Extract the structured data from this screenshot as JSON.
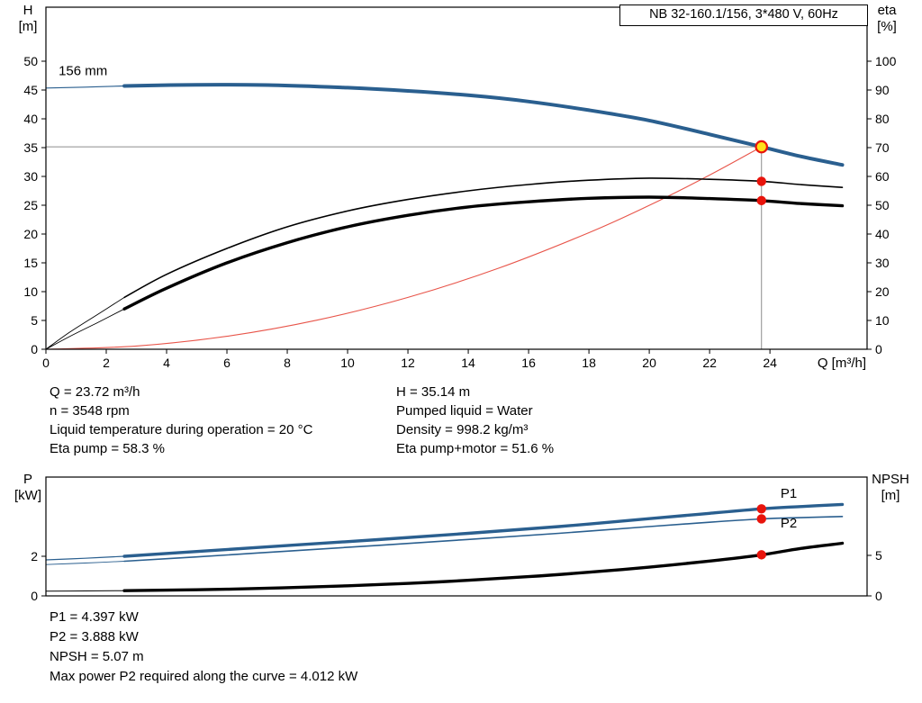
{
  "title_box": {
    "text": "NB 32-160.1/156, 3*480 V, 60Hz"
  },
  "colors": {
    "curve_blue": "#2a5f8f",
    "curve_black": "#000000",
    "system_red": "#e8554a",
    "dot_red": "#e8140c",
    "op_fill": "#ffe11a",
    "crosshair_gray": "#8c8c8c",
    "frame": "#000000"
  },
  "chart_data": [
    {
      "type": "line",
      "name": "hq-eta-chart",
      "title": "NB 32-160.1/156, 3*480 V, 60Hz",
      "x_axis": {
        "label": "Q [m³/h]",
        "min": 0,
        "max": 27.22,
        "ticks": [
          0,
          2,
          4,
          6,
          8,
          10,
          12,
          14,
          16,
          18,
          20,
          22,
          24
        ],
        "show_tick_labels": true
      },
      "y_left": {
        "name": "H",
        "unit": "[m]",
        "min": 0,
        "max": 59.375,
        "ticks": [
          0,
          5,
          10,
          15,
          20,
          25,
          30,
          35,
          40,
          45,
          50
        ]
      },
      "y_right": {
        "name": "eta",
        "unit": "[%]",
        "min": 0,
        "max": 118.75,
        "ticks": [
          0,
          10,
          20,
          30,
          40,
          50,
          60,
          70,
          80,
          90,
          100
        ]
      },
      "series": [
        {
          "name": "system-curve",
          "axis": "left",
          "color": "#e8554a",
          "width": 1.1,
          "points": [
            [
              0,
              0
            ],
            [
              3,
              0.56
            ],
            [
              6,
              2.25
            ],
            [
              9,
              5.06
            ],
            [
              12,
              9.0
            ],
            [
              15,
              14.06
            ],
            [
              18,
              20.24
            ],
            [
              20,
              24.98
            ],
            [
              22,
              30.23
            ],
            [
              23.72,
              35.14
            ]
          ]
        },
        {
          "name": "eta-pump",
          "axis": "right",
          "color": "#000000",
          "width": 1.6,
          "lead_width": 0.9,
          "lead_points": [
            [
              0,
              0
            ],
            [
              0.8,
              6
            ],
            [
              1.7,
              12
            ],
            [
              2.6,
              18
            ]
          ],
          "points": [
            [
              2.6,
              18
            ],
            [
              4,
              26
            ],
            [
              6,
              35
            ],
            [
              8,
              42.5
            ],
            [
              10,
              48
            ],
            [
              12,
              52
            ],
            [
              14,
              55
            ],
            [
              16,
              57.2
            ],
            [
              18,
              58.7
            ],
            [
              20,
              59.4
            ],
            [
              22,
              59.0
            ],
            [
              23.72,
              58.3
            ],
            [
              25,
              57.2
            ],
            [
              26.4,
              56.2
            ]
          ]
        },
        {
          "name": "eta-pump-motor",
          "axis": "right",
          "color": "#000000",
          "width": 3.4,
          "lead_width": 0.9,
          "lead_points": [
            [
              0,
              0
            ],
            [
              0.8,
              4.5
            ],
            [
              1.7,
              9.2
            ],
            [
              2.6,
              14
            ]
          ],
          "points": [
            [
              2.6,
              14
            ],
            [
              4,
              21.2
            ],
            [
              6,
              30
            ],
            [
              8,
              37
            ],
            [
              10,
              42.5
            ],
            [
              12,
              46.5
            ],
            [
              14,
              49.4
            ],
            [
              16,
              51.2
            ],
            [
              18,
              52.4
            ],
            [
              20,
              52.8
            ],
            [
              22,
              52.3
            ],
            [
              23.72,
              51.6
            ],
            [
              25,
              50.6
            ],
            [
              26.4,
              49.8
            ]
          ]
        },
        {
          "name": "head-curve-156mm",
          "axis": "left",
          "color": "#2a5f8f",
          "width": 4,
          "lead_width": 1.2,
          "lead_points": [
            [
              0,
              45.35
            ],
            [
              1.3,
              45.5
            ],
            [
              2.6,
              45.7
            ]
          ],
          "points": [
            [
              2.6,
              45.7
            ],
            [
              5,
              45.9
            ],
            [
              7.5,
              45.85
            ],
            [
              10,
              45.4
            ],
            [
              12,
              44.85
            ],
            [
              14,
              44.1
            ],
            [
              16,
              43.0
            ],
            [
              18,
              41.5
            ],
            [
              20,
              39.7
            ],
            [
              22,
              37.3
            ],
            [
              23.72,
              35.14
            ],
            [
              25,
              33.5
            ],
            [
              26.4,
              32.0
            ]
          ]
        }
      ],
      "crosshair": {
        "x": 23.72,
        "y": 35.14,
        "axis": "left"
      },
      "markers": [
        {
          "type": "dot",
          "x": 23.72,
          "y": 58.3,
          "axis": "right"
        },
        {
          "type": "dot",
          "x": 23.72,
          "y": 51.6,
          "axis": "right"
        },
        {
          "type": "op",
          "x": 23.72,
          "y": 35.14,
          "axis": "left"
        }
      ],
      "annotations": [
        {
          "text": "156 mm",
          "x": 0.42,
          "y": 47.6,
          "axis": "left",
          "color": "#000000"
        }
      ]
    },
    {
      "type": "line",
      "name": "power-npsh-chart",
      "title": "",
      "x_axis": {
        "label": "",
        "min": 0,
        "max": 27.22,
        "ticks": [],
        "show_tick_labels": false
      },
      "y_left": {
        "name": "P",
        "unit": "[kW]",
        "min": 0,
        "max": 6.0,
        "ticks": [
          0,
          2
        ]
      },
      "y_right": {
        "name": "NPSH",
        "unit": "[m]",
        "min": 0,
        "max": 14.67,
        "ticks": [
          0,
          5
        ]
      },
      "series": [
        {
          "name": "npsh-curve",
          "axis": "right",
          "color": "#000000",
          "width": 3.4,
          "lead_width": 1.0,
          "lead_points": [
            [
              0,
              0.58
            ],
            [
              1.3,
              0.61
            ],
            [
              2.6,
              0.65
            ]
          ],
          "points": [
            [
              2.6,
              0.65
            ],
            [
              6,
              0.82
            ],
            [
              10,
              1.25
            ],
            [
              13,
              1.72
            ],
            [
              16,
              2.38
            ],
            [
              18,
              2.92
            ],
            [
              20,
              3.55
            ],
            [
              22,
              4.3
            ],
            [
              23.72,
              5.07
            ],
            [
              25,
              5.85
            ],
            [
              26.4,
              6.5
            ]
          ]
        },
        {
          "name": "p2-power",
          "axis": "left",
          "color": "#2a5f8f",
          "width": 1.6,
          "lead_width": 0.9,
          "lead_points": [
            [
              0,
              1.58
            ],
            [
              1.3,
              1.66
            ],
            [
              2.6,
              1.75
            ]
          ],
          "points": [
            [
              2.6,
              1.75
            ],
            [
              5,
              1.97
            ],
            [
              8,
              2.26
            ],
            [
              11,
              2.55
            ],
            [
              14,
              2.85
            ],
            [
              17,
              3.16
            ],
            [
              20,
              3.5
            ],
            [
              22,
              3.72
            ],
            [
              23.72,
              3.888
            ],
            [
              25,
              3.95
            ],
            [
              26.4,
              4.01
            ]
          ]
        },
        {
          "name": "p1-power",
          "axis": "left",
          "color": "#2a5f8f",
          "width": 3.4,
          "lead_width": 1.2,
          "lead_points": [
            [
              0,
              1.82
            ],
            [
              1.3,
              1.9
            ],
            [
              2.6,
              2.0
            ]
          ],
          "points": [
            [
              2.6,
              2.0
            ],
            [
              5,
              2.24
            ],
            [
              8,
              2.54
            ],
            [
              11,
              2.84
            ],
            [
              14,
              3.16
            ],
            [
              17,
              3.5
            ],
            [
              20,
              3.9
            ],
            [
              22,
              4.17
            ],
            [
              23.72,
              4.397
            ],
            [
              25,
              4.51
            ],
            [
              26.4,
              4.62
            ]
          ]
        }
      ],
      "markers": [
        {
          "type": "dot",
          "x": 23.72,
          "y": 4.397,
          "axis": "left"
        },
        {
          "type": "dot",
          "x": 23.72,
          "y": 3.888,
          "axis": "left"
        },
        {
          "type": "dot",
          "x": 23.72,
          "y": 5.07,
          "axis": "right"
        }
      ],
      "annotations": [
        {
          "text": "P1",
          "x": 24.35,
          "y": 4.95,
          "axis": "left",
          "color": "#2a5f8f"
        },
        {
          "text": "P2",
          "x": 24.35,
          "y": 3.45,
          "axis": "left",
          "color": "#2a5f8f"
        }
      ]
    }
  ],
  "info": {
    "left": [
      "Q = 23.72 m³/h",
      "n = 3548 rpm",
      "Liquid temperature during operation = 20 °C",
      "Eta pump = 58.3 %"
    ],
    "right": [
      "H = 35.14 m",
      "Pumped liquid = Water",
      "Density = 998.2 kg/m³",
      "Eta pump+motor = 51.6 %"
    ],
    "bottom": [
      "P1 = 4.397 kW",
      "P2 = 3.888 kW",
      "NPSH = 5.07 m",
      "Max power P2 required along the curve = 4.012 kW"
    ]
  }
}
